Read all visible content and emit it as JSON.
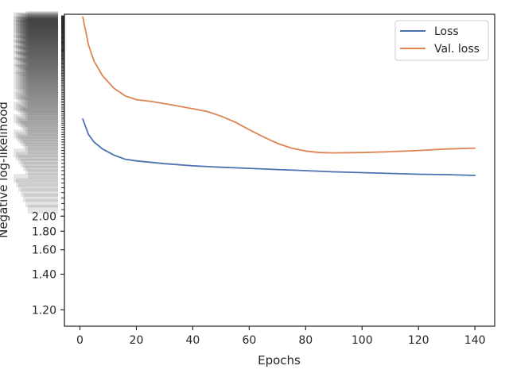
{
  "chart_data": {
    "type": "line",
    "xlabel": "Epochs",
    "ylabel": "Negative log-likelihood",
    "x_ticks": [
      0,
      20,
      40,
      60,
      80,
      100,
      120,
      140
    ],
    "y_ticks_readable": [
      "1.20",
      "1.40",
      "1.60",
      "1.80",
      "2.00"
    ],
    "y_ticks_values": [
      1.2,
      1.4,
      1.6,
      1.8,
      2.0
    ],
    "legend_position": "top-right",
    "series": [
      {
        "name": "Loss",
        "color": "#4c72b0",
        "x": [
          1,
          3,
          5,
          8,
          12,
          16,
          20,
          30,
          40,
          50,
          60,
          70,
          80,
          90,
          100,
          110,
          120,
          130,
          140
        ],
        "y": [
          4.8,
          4.1,
          3.8,
          3.55,
          3.35,
          3.22,
          3.17,
          3.09,
          3.03,
          2.99,
          2.96,
          2.93,
          2.9,
          2.87,
          2.85,
          2.83,
          2.81,
          2.8,
          2.78
        ]
      },
      {
        "name": "Val. loss",
        "color": "#dd8452",
        "x": [
          1,
          3,
          5,
          8,
          12,
          16,
          20,
          25,
          30,
          35,
          40,
          45,
          50,
          55,
          60,
          65,
          70,
          75,
          80,
          85,
          90,
          100,
          110,
          120,
          130,
          140
        ],
        "y": [
          15.3,
          11.0,
          9.1,
          7.7,
          6.7,
          6.15,
          5.9,
          5.8,
          5.65,
          5.5,
          5.35,
          5.2,
          4.95,
          4.65,
          4.3,
          4.0,
          3.75,
          3.58,
          3.48,
          3.43,
          3.42,
          3.43,
          3.46,
          3.5,
          3.55,
          3.58
        ]
      }
    ]
  }
}
